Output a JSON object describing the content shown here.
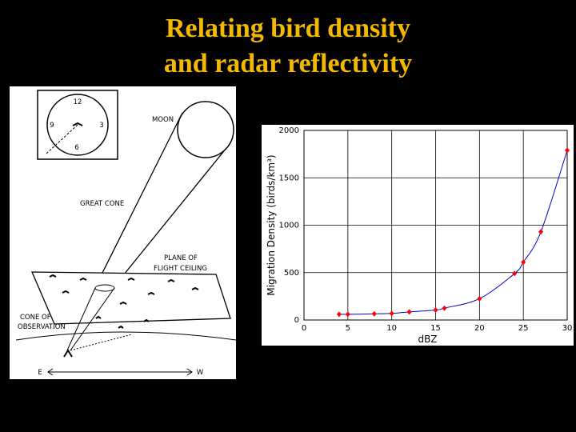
{
  "title_lines": [
    "Relating bird density",
    "and radar reflectivity"
  ],
  "diagram": {
    "clock": [
      "12",
      "3",
      "6",
      "9"
    ],
    "moon": "MOON",
    "great_cone": "GREAT CONE",
    "plane": [
      "PLANE OF",
      "FLIGHT CEILING"
    ],
    "cone_obs": [
      "CONE OF",
      "OBSERVATION"
    ],
    "east": "E",
    "west": "W"
  },
  "chart_data": {
    "type": "scatter",
    "x_label": "dBZ",
    "y_label": "Migration Density (birds/km³)",
    "x": [
      4,
      5,
      8,
      10,
      12,
      15,
      16,
      20,
      24,
      25,
      27,
      30
    ],
    "values": [
      60,
      60,
      65,
      70,
      85,
      105,
      125,
      225,
      490,
      610,
      930,
      1790
    ],
    "color": "#ff0000",
    "line_color": "#0000cc",
    "xlim": [
      0,
      30
    ],
    "xticks": [
      0,
      5,
      10,
      15,
      20,
      25,
      30
    ],
    "ylim": [
      0,
      2000
    ],
    "yticks": [
      0,
      500,
      1000,
      1500,
      2000
    ],
    "grid": true
  }
}
